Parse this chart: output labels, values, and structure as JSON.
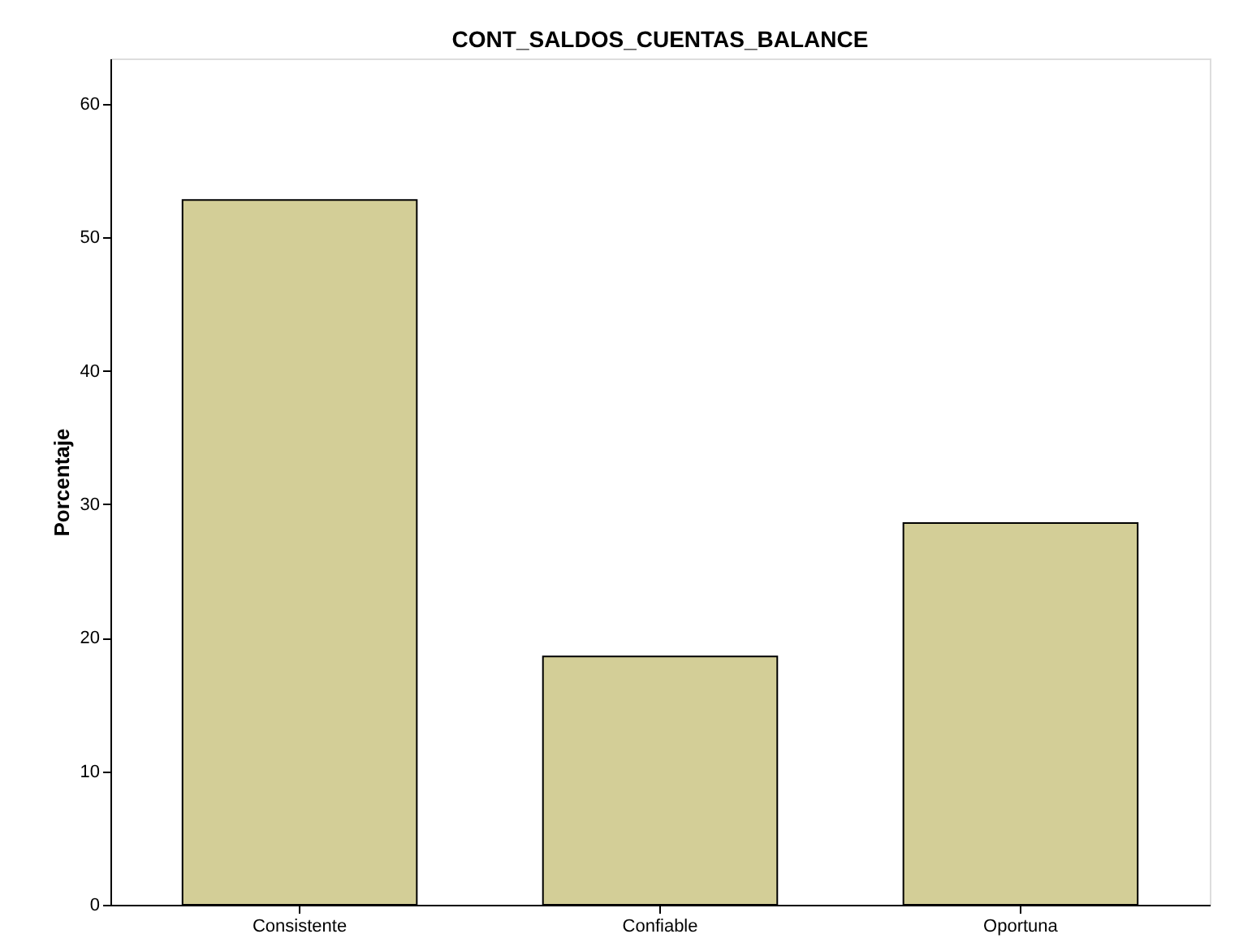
{
  "chart_data": {
    "type": "bar",
    "title": "CONT_SALDOS_CUENTAS_BALANCE",
    "ylabel": "Porcentaje",
    "categories": [
      "Consistente",
      "Confiable",
      "Oportuna"
    ],
    "values": [
      52.8,
      18.6,
      28.6
    ],
    "color": "#d3ce97",
    "ylim": [
      0,
      63.4
    ],
    "yticks": [
      0,
      10,
      20,
      30,
      40,
      50,
      60
    ],
    "grid": false
  }
}
